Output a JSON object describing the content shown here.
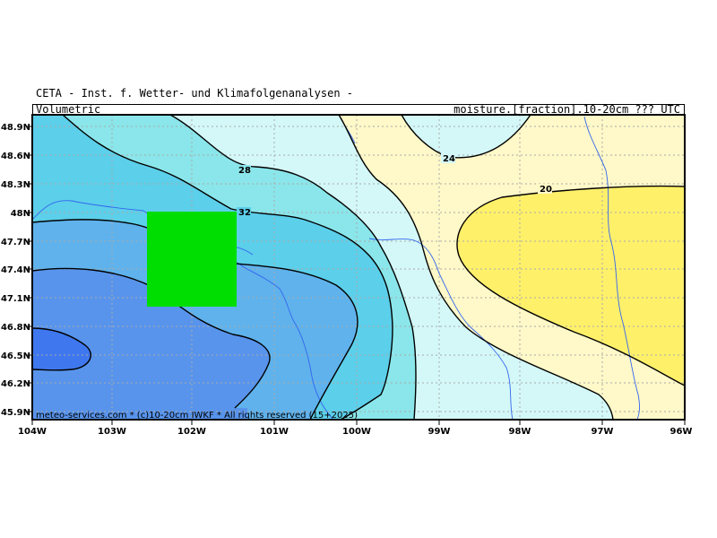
{
  "header": {
    "title": "CETA - Inst. f. Wetter- und Klimafolgenanalysen -",
    "subtitle_left": "Volumetric",
    "subtitle_right": "moisture.[fraction].10-20cm ??? UTC"
  },
  "footer": {
    "credit": "meteo-services.com * (c)10-20cm IWKF * All rights reserved (15+2025)"
  },
  "axes": {
    "lat_labels": [
      "48.9N",
      "48.6N",
      "48.3N",
      "48N",
      "47.7N",
      "47.4N",
      "47.1N",
      "46.8N",
      "46.5N",
      "46.2N",
      "45.9N"
    ],
    "lon_labels": [
      "104W",
      "103W",
      "102W",
      "101W",
      "100W",
      "99W",
      "98W",
      "97W",
      "96W"
    ]
  },
  "contour_labels": [
    "28",
    "32",
    "24",
    "20"
  ],
  "colors": {
    "band_16_20": "#fff06a",
    "band_20_24": "#fff8c8",
    "band_24_28": "#d4f8f8",
    "band_28_32": "#8ae6ea",
    "band_32_36": "#5ccfea",
    "band_36_40": "#5fb2ec",
    "band_40_44": "#5894ec",
    "band_44_48": "#3f78ee",
    "highlight_box": "#00dd00",
    "rivers": "#3366ee"
  }
}
